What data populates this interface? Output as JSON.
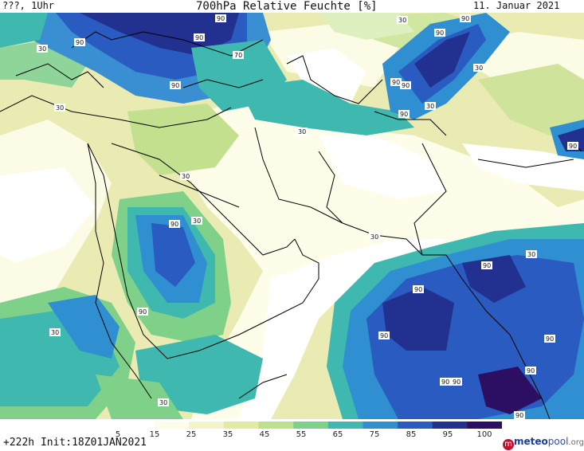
{
  "header": {
    "left": "???, 1Uhr",
    "title": "700hPa Relative Feuchte [%]",
    "date": "11. Januar 2021"
  },
  "footer": {
    "run": "+222h  Init:18Z01JAN2021",
    "logo_main": "meteo",
    "logo_accent": "pool",
    "logo_suffix": ".org"
  },
  "legend": {
    "ticks": [
      "5",
      "15",
      "25",
      "35",
      "45",
      "55",
      "65",
      "75",
      "85",
      "95",
      "100"
    ],
    "colors": [
      "#ffffff",
      "#fdfde9",
      "#f3f3c9",
      "#e6e8a6",
      "#bfe08a",
      "#7fd18a",
      "#3fb8b0",
      "#2f8fd0",
      "#2a5bc0",
      "#22308f",
      "#2c0f63"
    ]
  },
  "contour_labels": [
    "90",
    "90",
    "90",
    "90",
    "30",
    "70",
    "90",
    "90",
    "90",
    "90",
    "90",
    "90",
    "30",
    "30",
    "30",
    "30",
    "30",
    "90",
    "90",
    "90",
    "90",
    "90",
    "90",
    "90",
    "30",
    "30",
    "30",
    "30",
    "30",
    "30",
    "90",
    "90",
    "90"
  ]
}
